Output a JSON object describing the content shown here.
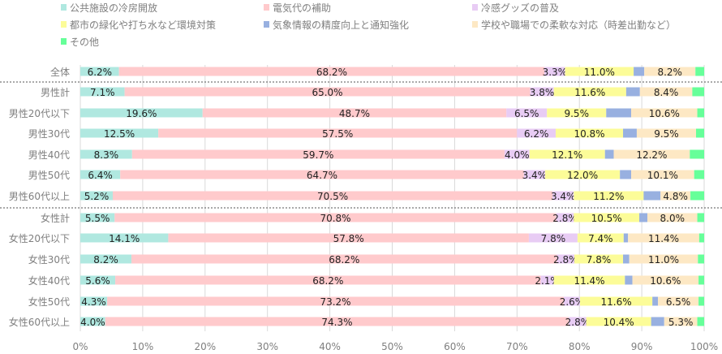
{
  "chart_data": {
    "type": "bar",
    "orientation": "horizontal",
    "stacked": true,
    "percent": true,
    "title": "",
    "xlabel": "",
    "ylabel": "",
    "xlim": [
      0,
      100
    ],
    "x_ticks": [
      "0%",
      "10%",
      "20%",
      "30%",
      "40%",
      "50%",
      "60%",
      "70%",
      "80%",
      "90%",
      "100%"
    ],
    "grid": true,
    "legend_position": "top",
    "categories": [
      "全体",
      "男性計",
      "男性20代以下",
      "男性30代",
      "男性40代",
      "男性50代",
      "男性60代以上",
      "女性計",
      "女性20代以下",
      "女性30代",
      "女性40代",
      "女性50代",
      "女性60代以上"
    ],
    "group_separators_after": [
      "全体",
      "男性60代以上"
    ],
    "series": [
      {
        "name": "公共施設の冷房開放",
        "color": "#b0e8e0",
        "labeled": true,
        "values": [
          6.2,
          7.1,
          19.6,
          12.5,
          8.3,
          6.4,
          5.2,
          5.5,
          14.1,
          8.2,
          5.6,
          4.3,
          4.0
        ]
      },
      {
        "name": "電気代の補助",
        "color": "#ffcacc",
        "labeled": true,
        "values": [
          68.2,
          65.0,
          48.7,
          57.5,
          59.7,
          64.7,
          70.5,
          70.8,
          57.8,
          68.2,
          68.2,
          73.2,
          74.3
        ]
      },
      {
        "name": "冷感グッズの普及",
        "color": "#e8ccf4",
        "labeled": true,
        "values": [
          3.3,
          3.8,
          6.5,
          6.2,
          4.0,
          3.4,
          3.4,
          2.8,
          7.8,
          2.8,
          2.1,
          2.6,
          2.8
        ]
      },
      {
        "name": "都市の緑化や打ち水など環境対策",
        "color": "#fcfc98",
        "labeled": true,
        "values": [
          11.0,
          11.6,
          9.5,
          10.8,
          12.1,
          12.0,
          11.2,
          10.5,
          7.4,
          7.8,
          11.4,
          11.6,
          10.4
        ]
      },
      {
        "name": "気象情報の精度向上と通知強化",
        "color": "#98b0e0",
        "labeled": false,
        "values": [
          1.7,
          2.2,
          4.0,
          2.2,
          1.4,
          1.8,
          2.7,
          1.3,
          0.7,
          1.0,
          1.2,
          0.9,
          2.1
        ]
      },
      {
        "name": "学校や職場での柔軟な対応（時差出勤など）",
        "color": "#fde8c4",
        "labeled": true,
        "values": [
          8.2,
          8.4,
          10.6,
          9.5,
          12.2,
          10.1,
          4.8,
          8.0,
          11.4,
          11.0,
          10.6,
          6.5,
          5.3
        ]
      },
      {
        "name": "その他",
        "color": "#66ff99",
        "labeled": false,
        "values": [
          1.4,
          1.9,
          1.1,
          1.3,
          2.3,
          1.6,
          2.2,
          1.1,
          0.8,
          1.0,
          0.9,
          0.9,
          1.1
        ]
      }
    ]
  }
}
